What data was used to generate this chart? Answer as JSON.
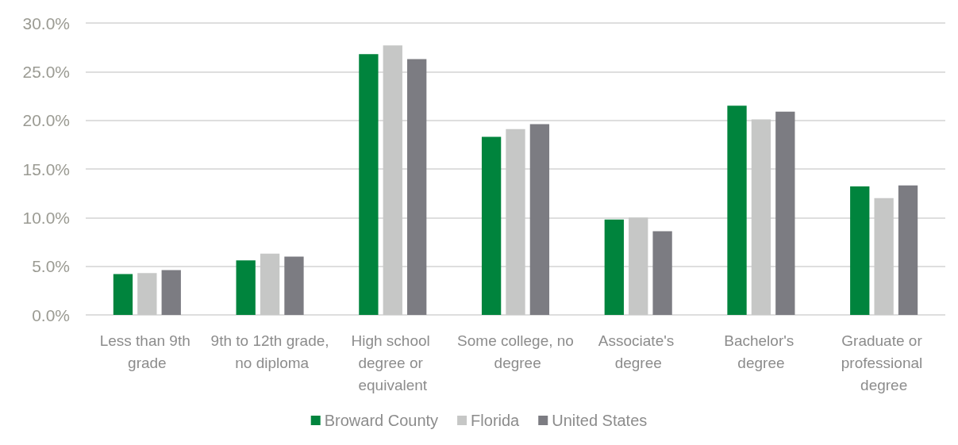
{
  "chart_data": {
    "type": "bar",
    "categories": [
      "Less than 9th grade",
      "9th to 12th grade, no diploma",
      "High school degree or equivalent",
      "Some college, no degree",
      "Associate's degree",
      "Bachelor's degree",
      "Graduate or professional degree"
    ],
    "series": [
      {
        "name": "Broward County",
        "color": "#00843d",
        "values": [
          4.2,
          5.6,
          26.8,
          18.3,
          9.8,
          21.5,
          13.2
        ]
      },
      {
        "name": "Florida",
        "color": "#c6c7c6",
        "values": [
          4.3,
          6.3,
          27.7,
          19.1,
          10.0,
          20.1,
          12.0
        ]
      },
      {
        "name": "United States",
        "color": "#7c7c82",
        "values": [
          4.6,
          6.0,
          26.3,
          19.6,
          8.6,
          20.9,
          13.3
        ]
      }
    ],
    "ylim": [
      0,
      30
    ],
    "yticks": [
      {
        "value": 0,
        "label": "0.0%"
      },
      {
        "value": 5,
        "label": "5.0%"
      },
      {
        "value": 10,
        "label": "10.0%"
      },
      {
        "value": 15,
        "label": "15.0%"
      },
      {
        "value": 20,
        "label": "20.0%"
      },
      {
        "value": 25,
        "label": "25.0%"
      },
      {
        "value": 30,
        "label": "30.0%"
      }
    ],
    "grid": "y",
    "legend": "bottom"
  }
}
